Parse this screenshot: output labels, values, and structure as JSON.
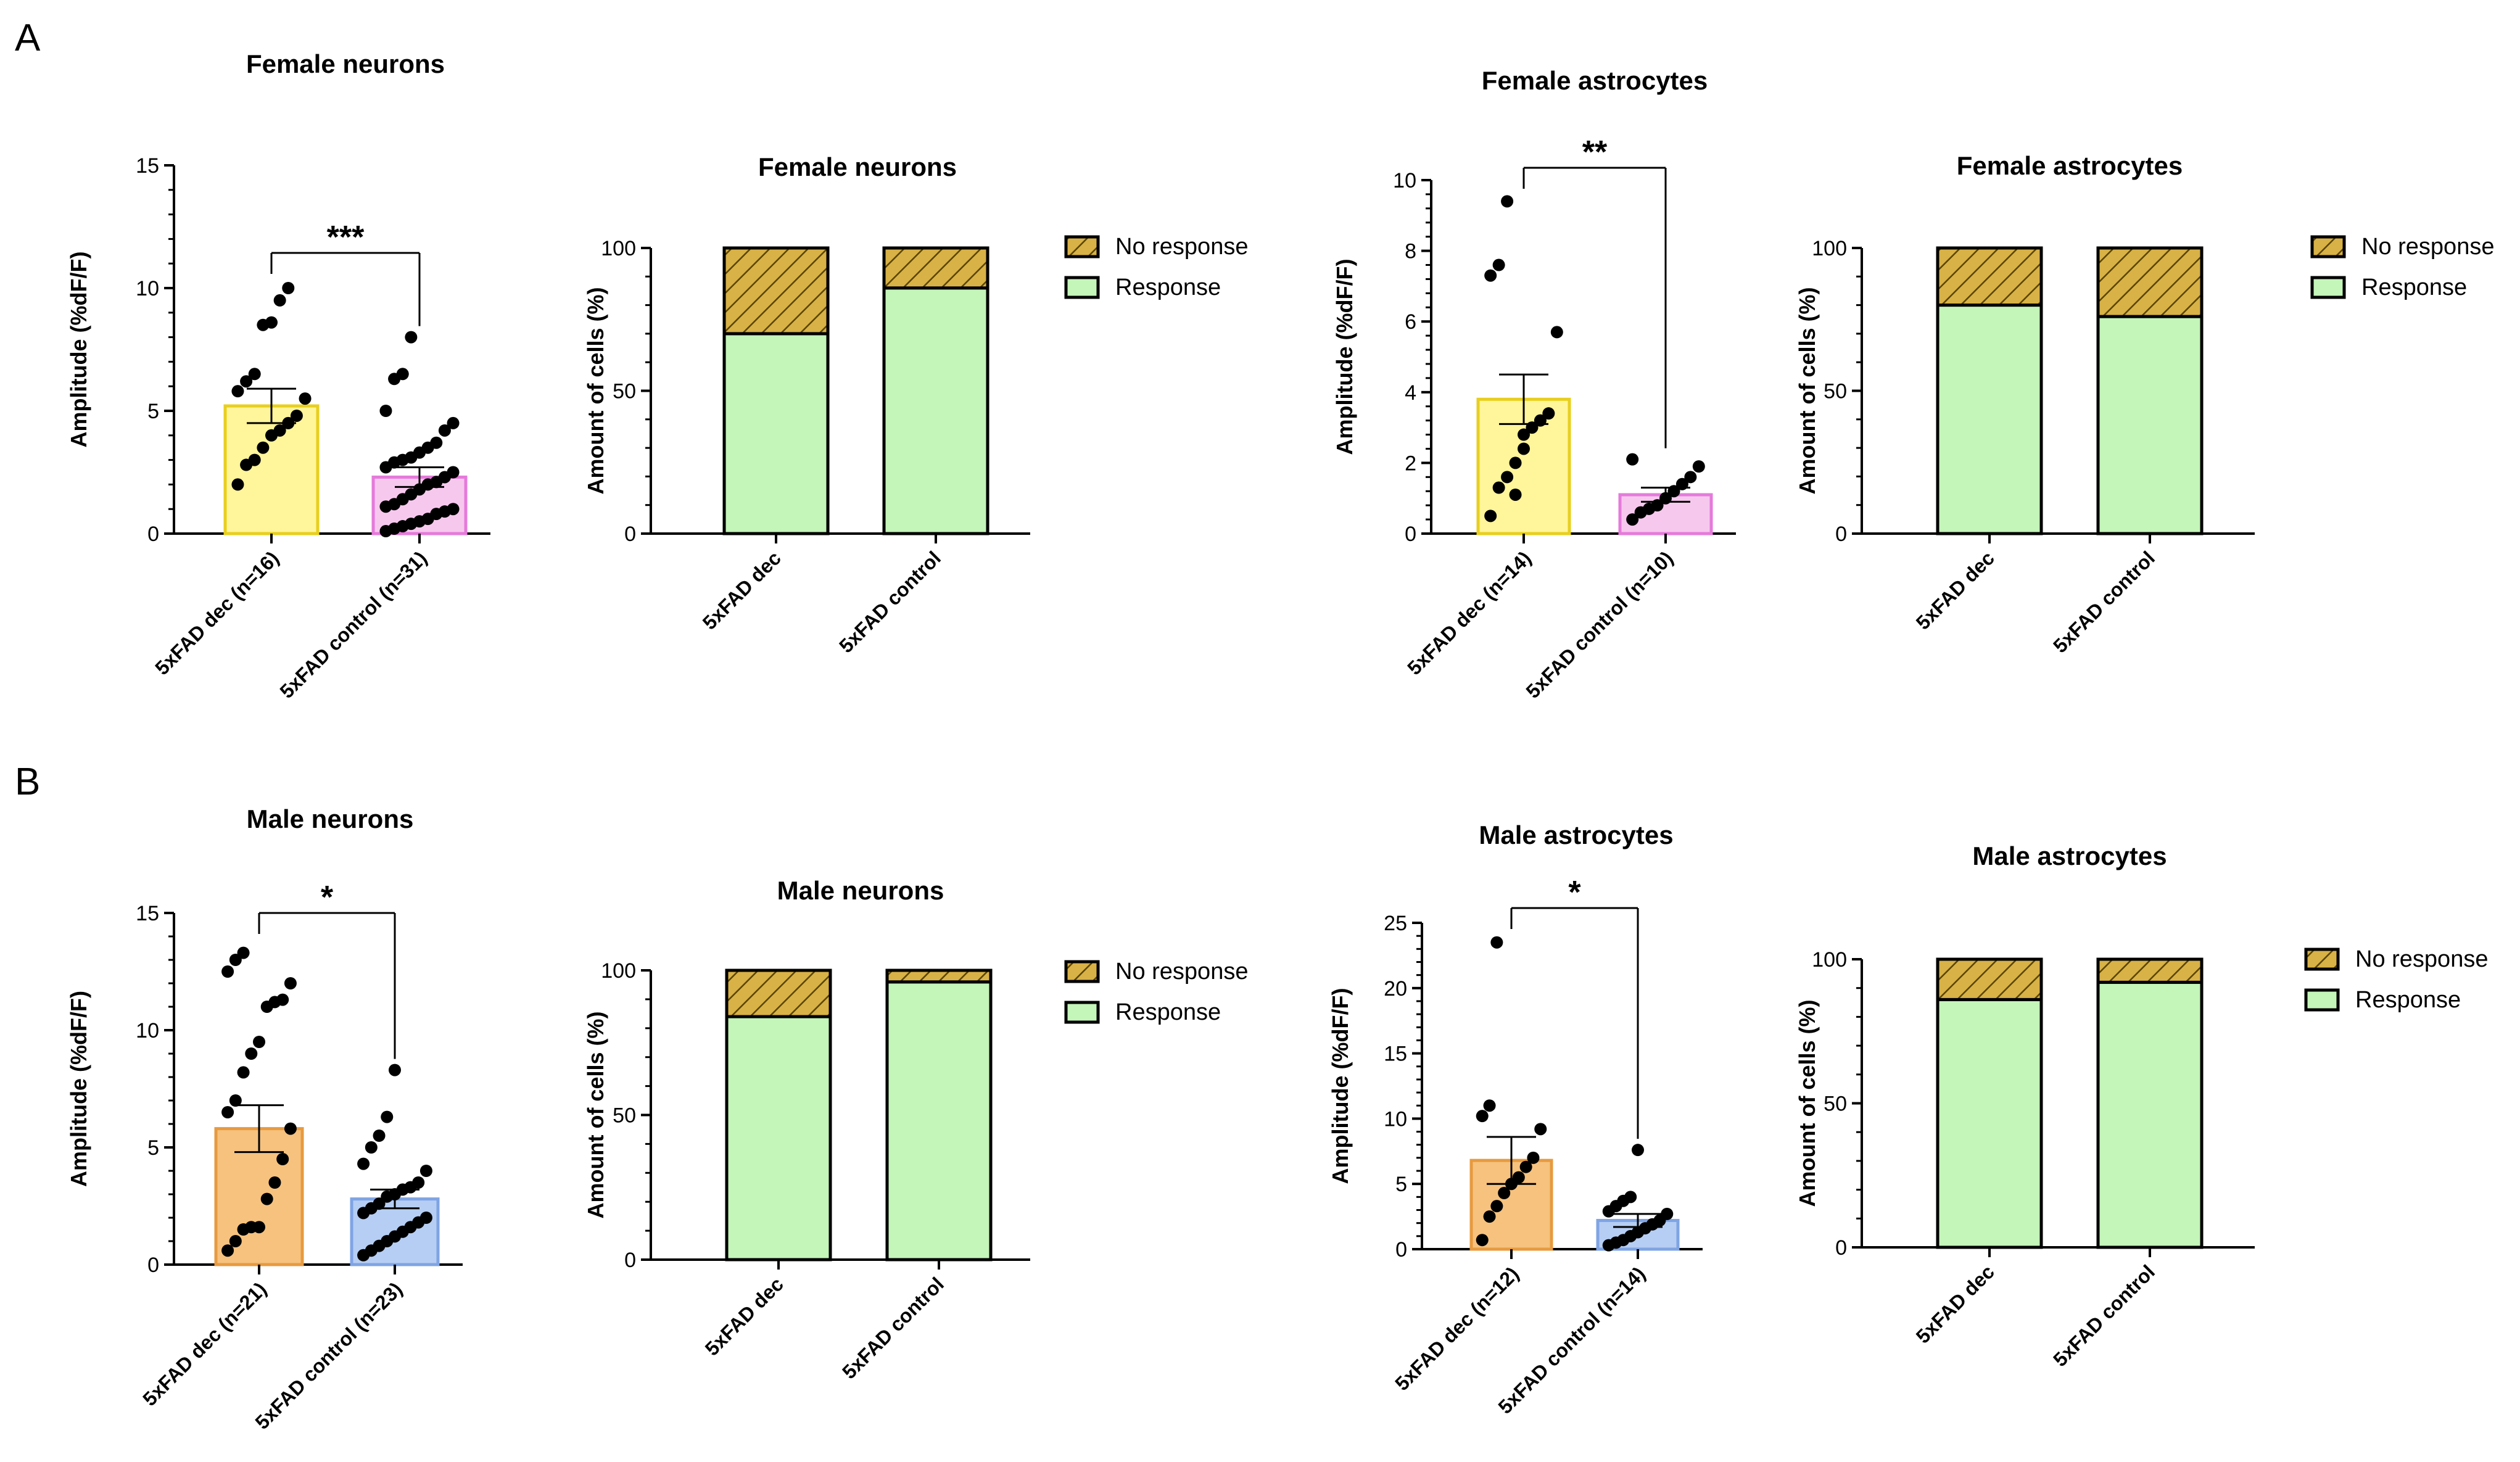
{
  "panel_labels": [
    "A",
    "B"
  ],
  "colors": {
    "yellow_fill": "#FFF59A",
    "yellow_edge": "#E8CF1E",
    "pink_fill": "#F7C8EE",
    "pink_edge": "#E57ADB",
    "orange_fill": "#F6C27E",
    "orange_edge": "#E79A3F",
    "blue_fill": "#B6CEF3",
    "blue_edge": "#7FA4E4",
    "response_fill": "#C4F5B9",
    "no_response_fill": "#D8B246",
    "no_response_hatch": "#5A4400"
  },
  "chart_data": [
    {
      "type": "bar",
      "panel": "A",
      "title": "Female neurons",
      "ylabel": "Amplitude (%dF/F)",
      "ylim": [
        0,
        15
      ],
      "yticks": [
        0,
        5,
        10,
        15
      ],
      "categories": [
        "5xFAD dec (n=16)",
        "5xFAD control (n=31)"
      ],
      "values": [
        5.2,
        2.3
      ],
      "sem": [
        0.7,
        0.4
      ],
      "fill_colors": [
        "#FFF59A",
        "#F7C8EE"
      ],
      "edge_colors": [
        "#E8CF1E",
        "#E57ADB"
      ],
      "points": [
        [
          2.0,
          2.8,
          3.0,
          3.5,
          4.0,
          4.2,
          4.5,
          4.8,
          5.5,
          5.8,
          6.2,
          6.5,
          8.5,
          8.6,
          9.5,
          10.0
        ],
        [
          0.1,
          0.2,
          0.3,
          0.4,
          0.5,
          0.6,
          0.8,
          0.9,
          1.0,
          1.1,
          1.2,
          1.4,
          1.6,
          1.8,
          2.0,
          2.1,
          2.3,
          2.5,
          2.7,
          2.9,
          3.0,
          3.1,
          3.3,
          3.5,
          3.7,
          4.2,
          4.5,
          5.0,
          6.3,
          6.5,
          8.0
        ]
      ],
      "significance": "***"
    },
    {
      "type": "bar",
      "stacked": true,
      "panel": "A",
      "title": "Female neurons",
      "ylabel": "Amount of cells (%)",
      "ylim": [
        0,
        100
      ],
      "yticks": [
        0,
        50,
        100
      ],
      "categories": [
        "5xFAD dec",
        "5xFAD control"
      ],
      "series": [
        {
          "name": "Response",
          "values": [
            70,
            86
          ]
        },
        {
          "name": "No response",
          "values": [
            30,
            14
          ]
        }
      ],
      "legend": [
        "No response",
        "Response"
      ]
    },
    {
      "type": "bar",
      "panel": "A",
      "title": "Female astrocytes",
      "ylabel": "Amplitude (%dF/F)",
      "ylim": [
        0,
        10
      ],
      "yticks": [
        0,
        2,
        4,
        6,
        8,
        10
      ],
      "categories": [
        "5xFAD dec (n=14)",
        "5xFAD control (n=10)"
      ],
      "values": [
        3.8,
        1.1
      ],
      "sem": [
        0.7,
        0.2
      ],
      "fill_colors": [
        "#FFF59A",
        "#F7C8EE"
      ],
      "edge_colors": [
        "#E8CF1E",
        "#E57ADB"
      ],
      "points": [
        [
          0.5,
          1.3,
          1.6,
          2.0,
          2.4,
          3.0,
          3.2,
          3.4,
          5.7,
          7.3,
          7.6,
          9.4,
          1.1,
          2.8
        ],
        [
          0.4,
          0.6,
          0.7,
          0.8,
          1.0,
          1.2,
          1.4,
          1.6,
          1.9,
          2.1
        ]
      ],
      "significance": "**"
    },
    {
      "type": "bar",
      "stacked": true,
      "panel": "A",
      "title": "Female astrocytes",
      "ylabel": "Amount of cells (%)",
      "ylim": [
        0,
        100
      ],
      "yticks": [
        0,
        50,
        100
      ],
      "categories": [
        "5xFAD dec",
        "5xFAD control"
      ],
      "series": [
        {
          "name": "Response",
          "values": [
            80,
            76
          ]
        },
        {
          "name": "No response",
          "values": [
            20,
            24
          ]
        }
      ],
      "legend": [
        "No response",
        "Response"
      ]
    },
    {
      "type": "bar",
      "panel": "B",
      "title": "Male neurons",
      "ylabel": "Amplitude (%dF/F)",
      "ylim": [
        0,
        15
      ],
      "yticks": [
        0,
        5,
        10,
        15
      ],
      "categories": [
        "5xFAD dec (n=21)",
        "5xFAD control (n=23)"
      ],
      "values": [
        5.8,
        2.8
      ],
      "sem": [
        1.0,
        0.4
      ],
      "fill_colors": [
        "#F6C27E",
        "#B6CEF3"
      ],
      "edge_colors": [
        "#E79A3F",
        "#7FA4E4"
      ],
      "points": [
        [
          0.6,
          1.0,
          1.5,
          1.6,
          1.6,
          2.8,
          3.5,
          4.5,
          5.8,
          6.5,
          7.0,
          8.2,
          9.0,
          9.5,
          11.0,
          11.2,
          11.3,
          12.0,
          12.5,
          13.0,
          13.3
        ],
        [
          0.4,
          0.6,
          0.8,
          1.0,
          1.2,
          1.4,
          1.6,
          1.8,
          2.0,
          2.2,
          2.4,
          2.6,
          2.9,
          3.0,
          3.2,
          3.3,
          3.5,
          4.0,
          4.3,
          5.0,
          5.5,
          6.3,
          8.3
        ]
      ],
      "significance": "*"
    },
    {
      "type": "bar",
      "stacked": true,
      "panel": "B",
      "title": "Male neurons",
      "ylabel": "Amount of cells (%)",
      "ylim": [
        0,
        100
      ],
      "yticks": [
        0,
        50,
        100
      ],
      "categories": [
        "5xFAD dec",
        "5xFAD control"
      ],
      "series": [
        {
          "name": "Response",
          "values": [
            84,
            96
          ]
        },
        {
          "name": "No response",
          "values": [
            16,
            4
          ]
        }
      ],
      "legend": [
        "No response",
        "Response"
      ]
    },
    {
      "type": "bar",
      "panel": "B",
      "title": "Male astrocytes",
      "ylabel": "Amplitude (%dF/F)",
      "ylim": [
        0,
        25
      ],
      "yticks": [
        0,
        5,
        10,
        15,
        20,
        25
      ],
      "categories": [
        "5xFAD dec (n=12)",
        "5xFAD control (n=14)"
      ],
      "values": [
        6.8,
        2.2
      ],
      "sem": [
        1.8,
        0.5
      ],
      "fill_colors": [
        "#F6C27E",
        "#B6CEF3"
      ],
      "edge_colors": [
        "#E79A3F",
        "#7FA4E4"
      ],
      "points": [
        [
          0.7,
          2.5,
          3.3,
          4.3,
          5.0,
          5.5,
          6.3,
          7.0,
          9.2,
          10.2,
          11.0,
          23.5
        ],
        [
          0.3,
          0.5,
          0.7,
          1.0,
          1.3,
          1.6,
          1.9,
          2.2,
          2.7,
          2.9,
          3.3,
          3.7,
          4.0,
          7.6
        ]
      ],
      "significance": "*"
    },
    {
      "type": "bar",
      "stacked": true,
      "panel": "B",
      "title": "Male astrocytes",
      "ylabel": "Amount of cells (%)",
      "ylim": [
        0,
        100
      ],
      "yticks": [
        0,
        50,
        100
      ],
      "categories": [
        "5xFAD dec",
        "5xFAD control"
      ],
      "series": [
        {
          "name": "Response",
          "values": [
            86,
            92
          ]
        },
        {
          "name": "No response",
          "values": [
            14,
            8
          ]
        }
      ],
      "legend": [
        "No response",
        "Response"
      ]
    }
  ]
}
